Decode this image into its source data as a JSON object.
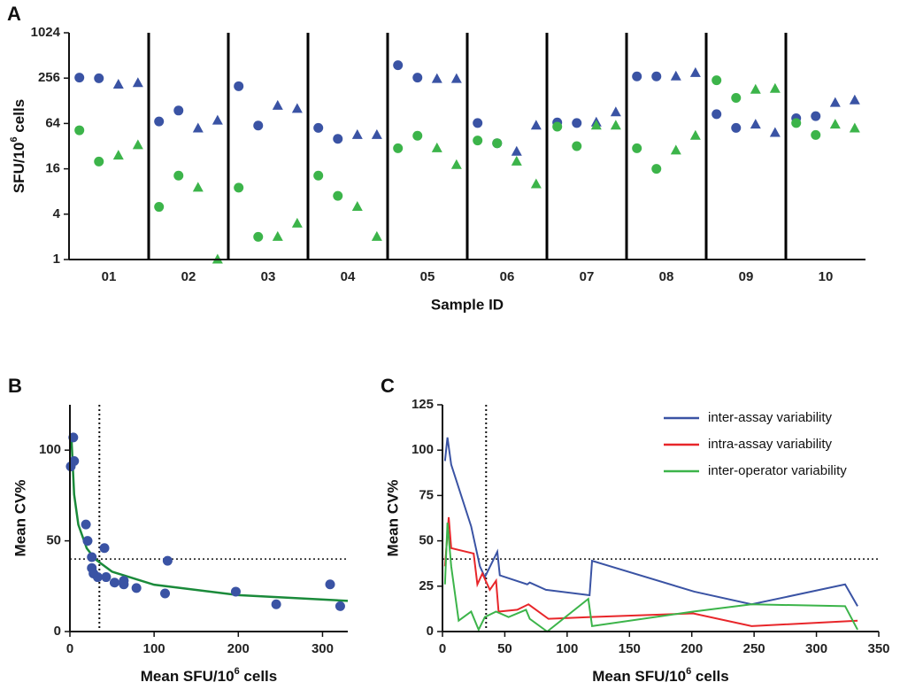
{
  "chart_data": [
    {
      "panel": "A",
      "type": "strip",
      "y_label": [
        "SFU/10",
        "6",
        " cells"
      ],
      "x_label": "Sample ID",
      "categories": [
        "01",
        "02",
        "03",
        "04",
        "05",
        "06",
        "07",
        "08",
        "09",
        "10"
      ],
      "series": [
        {
          "color": "#3a53a4",
          "marker": "circle",
          "values": [
            260,
            68,
            200,
            56,
            380,
            65,
            66,
            270,
            85,
            75
          ]
        },
        {
          "color": "#3a53a4",
          "marker": "circle",
          "values": [
            255,
            95,
            60,
            40,
            260,
            35,
            65,
            270,
            56,
            80
          ]
        },
        {
          "color": "#3a53a4",
          "marker": "triangle",
          "values": [
            210,
            55,
            110,
            45,
            250,
            27,
            66,
            270,
            62,
            120
          ]
        },
        {
          "color": "#3a53a4",
          "marker": "triangle",
          "values": [
            220,
            70,
            100,
            45,
            250,
            60,
            90,
            300,
            48,
            130
          ]
        },
        {
          "color": "#3cb44a",
          "marker": "circle",
          "values": [
            52,
            5,
            9,
            13,
            30,
            38,
            58,
            30,
            240,
            65
          ]
        },
        {
          "color": "#3cb44a",
          "marker": "circle",
          "values": [
            20,
            13,
            2,
            7,
            44,
            35,
            32,
            16,
            140,
            45
          ]
        },
        {
          "color": "#3cb44a",
          "marker": "triangle",
          "values": [
            24,
            9,
            2,
            5,
            30,
            20,
            60,
            28,
            180,
            62
          ]
        },
        {
          "color": "#3cb44a",
          "marker": "triangle",
          "values": [
            33,
            1,
            3,
            2,
            18,
            10,
            60,
            44,
            185,
            55
          ]
        }
      ],
      "ylim": [
        1,
        1024
      ],
      "yticks": [
        1,
        4,
        16,
        64,
        256,
        1024
      ],
      "log_scale": true,
      "log_base": 2
    },
    {
      "panel": "B",
      "type": "scatter",
      "y_label": "Mean CV%",
      "x_label": [
        "Mean SFU/10",
        "6",
        " cells"
      ],
      "x": [
        1,
        4,
        5,
        19,
        21,
        26,
        26,
        28,
        33,
        41,
        43,
        53,
        64,
        64,
        79,
        113,
        116,
        197,
        245,
        309,
        321
      ],
      "values": [
        91,
        107,
        94,
        59,
        50,
        41,
        35,
        32,
        30,
        46,
        30,
        27,
        26,
        28,
        24,
        21,
        39,
        22,
        15,
        26,
        14
      ],
      "color": "#3a53a4",
      "fit": {
        "color": "#1a8a3a",
        "x": [
          2,
          5,
          10,
          20,
          30,
          50,
          100,
          200,
          330
        ],
        "values": [
          104.9,
          75.6,
          58.9,
          45.9,
          39.9,
          33.0,
          25.8,
          20.1,
          16.9
        ]
      },
      "reference_lines": {
        "x": 35,
        "y": 40
      },
      "xlim": [
        0,
        330
      ],
      "xticks": [
        0,
        100,
        200,
        300
      ],
      "ylim": [
        0,
        125
      ],
      "yticks": [
        0,
        50,
        100
      ]
    },
    {
      "panel": "C",
      "type": "line",
      "y_label": "Mean CV%",
      "x_label": [
        "Mean SFU/10",
        "6",
        " cells"
      ],
      "series": [
        {
          "name": "inter-assay variability",
          "color": "#3a53a4",
          "x": [
            2,
            4,
            7,
            23,
            30,
            34,
            44,
            46,
            68,
            70,
            83,
            118,
            120,
            202,
            248,
            323,
            333
          ],
          "values": [
            94,
            107,
            92,
            58,
            36,
            30,
            44,
            31,
            26,
            27,
            23,
            20,
            39,
            22,
            15,
            26,
            14
          ]
        },
        {
          "name": "intra-assay variability",
          "color": "#e8262a",
          "x": [
            2,
            5,
            7,
            25,
            28,
            32,
            38,
            43,
            45,
            60,
            69,
            85,
            119,
            201,
            248,
            333
          ],
          "values": [
            36,
            63,
            46,
            43,
            26,
            32,
            23,
            28,
            11,
            12,
            15,
            7,
            8,
            10,
            3,
            6
          ]
        },
        {
          "name": "inter-operator variability",
          "color": "#3cb44a",
          "x": [
            2,
            4,
            7,
            13,
            23,
            29,
            34,
            43,
            53,
            67,
            70,
            84,
            117,
            120,
            201,
            248,
            323,
            333
          ],
          "values": [
            26,
            60,
            36,
            6,
            11,
            1,
            8,
            11,
            8,
            12,
            7,
            0,
            18,
            3,
            11,
            15,
            14,
            1
          ]
        }
      ],
      "legend": "upper right",
      "reference_lines": {
        "x": 35,
        "y": 40
      },
      "xlim": [
        0,
        350
      ],
      "xticks": [
        0,
        50,
        100,
        150,
        200,
        250,
        300,
        350
      ],
      "ylim": [
        0,
        125
      ],
      "yticks": [
        0,
        25,
        50,
        75,
        100,
        125
      ]
    }
  ]
}
